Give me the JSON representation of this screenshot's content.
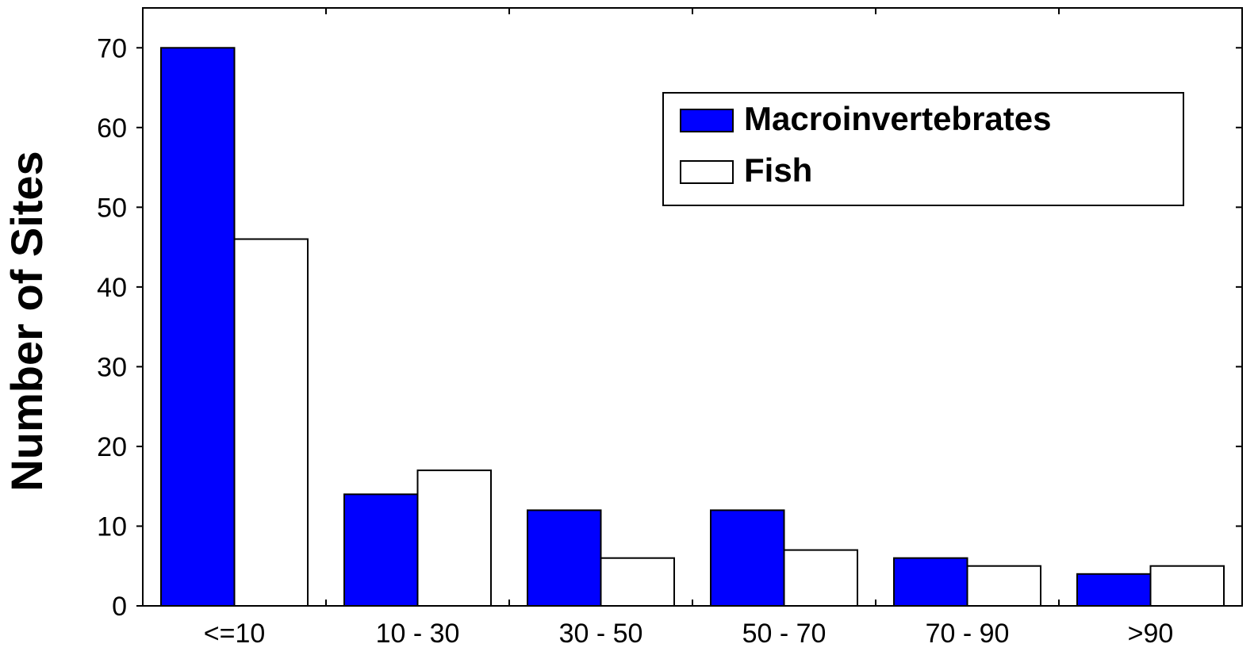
{
  "chart_data": {
    "type": "bar",
    "title": "",
    "xlabel": "",
    "ylabel": "Number of Sites",
    "ylim": [
      0,
      75
    ],
    "yticks": [
      0,
      10,
      20,
      30,
      40,
      50,
      60,
      70
    ],
    "categories": [
      "<=10",
      "10 - 30",
      "30 - 50",
      "50 - 70",
      "70 - 90",
      ">90"
    ],
    "series": [
      {
        "name": "Macroinvertebrates",
        "color": "#0000ff",
        "values": [
          70,
          14,
          12,
          12,
          6,
          4
        ]
      },
      {
        "name": "Fish",
        "color": "#ffffff",
        "values": [
          46,
          17,
          6,
          7,
          5,
          5
        ]
      }
    ],
    "grid": false,
    "legend_position": "top-right",
    "bar_outline_color": "#000000"
  }
}
